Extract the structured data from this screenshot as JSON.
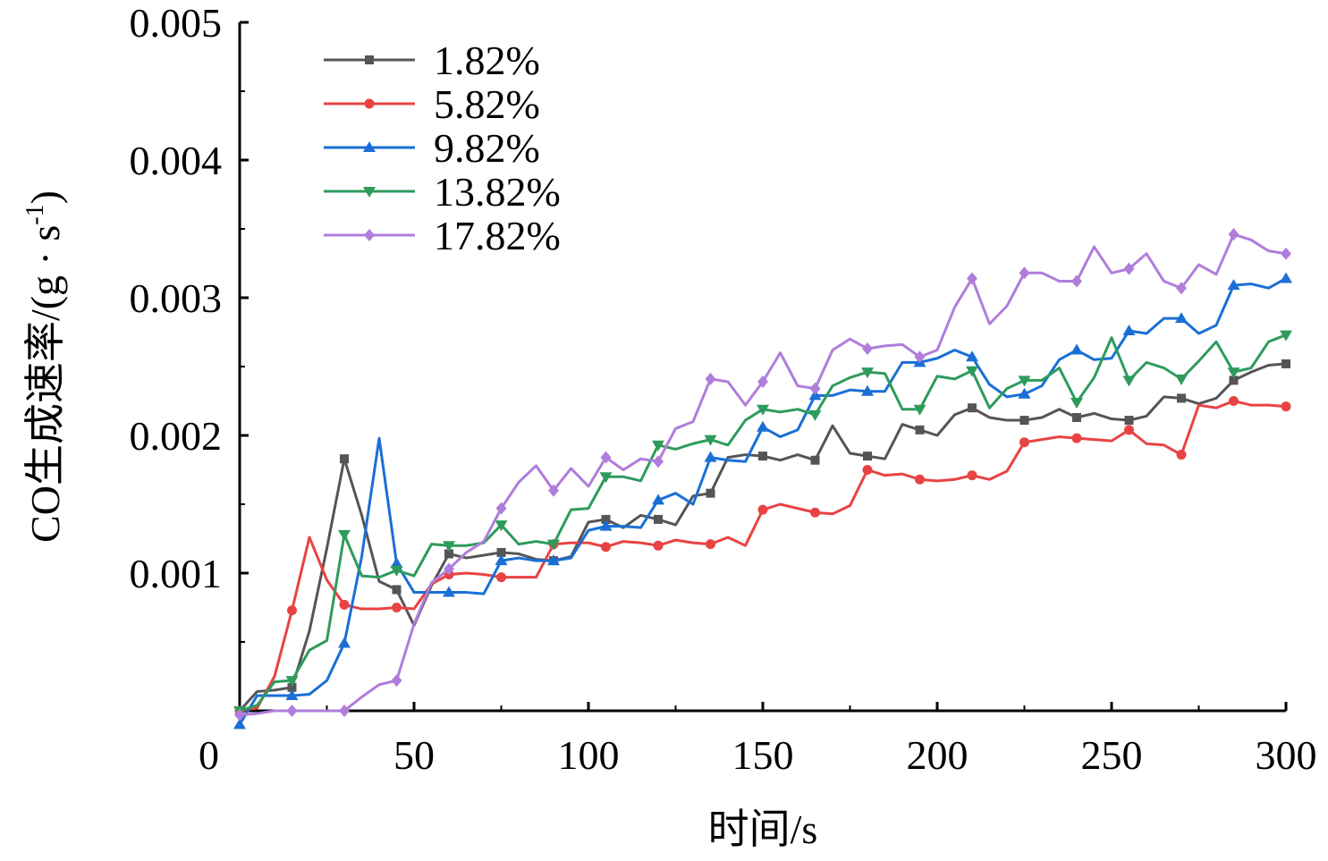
{
  "chart_data": {
    "type": "line",
    "xlabel": "时间/s",
    "ylabel": "CO生成速率/(g · s",
    "ylabel_superscript": "-1",
    "ylabel_close": ")",
    "xlim": [
      0,
      300
    ],
    "ylim": [
      0,
      0.005
    ],
    "x_ticks": [
      0,
      50,
      100,
      150,
      200,
      250,
      300
    ],
    "x_tick_labels": [
      "0",
      "50",
      "100",
      "150",
      "200",
      "250",
      "300"
    ],
    "y_ticks": [
      0.001,
      0.002,
      0.003,
      0.004,
      0.005
    ],
    "y_tick_labels": [
      "0.001",
      "0.002",
      "0.003",
      "0.004",
      "0.005"
    ],
    "grid": false,
    "legend_position": "top-left",
    "series": [
      {
        "name": "1.82%",
        "color": "#555555",
        "marker": "square",
        "x": [
          0,
          5,
          10,
          15,
          20,
          25,
          30,
          35,
          40,
          45,
          50,
          55,
          60,
          65,
          70,
          75,
          80,
          85,
          90,
          95,
          100,
          105,
          110,
          115,
          120,
          125,
          130,
          135,
          140,
          145,
          150,
          155,
          160,
          165,
          170,
          175,
          180,
          185,
          190,
          195,
          200,
          205,
          210,
          215,
          220,
          225,
          230,
          235,
          240,
          245,
          250,
          255,
          260,
          265,
          270,
          275,
          280,
          285,
          290,
          295,
          300
        ],
        "y": [
          0,
          0.00014,
          0.00015,
          0.00017,
          0.00058,
          0.00118,
          0.00183,
          0.00142,
          0.00094,
          0.00088,
          0.00062,
          0.00091,
          0.00114,
          0.00111,
          0.00113,
          0.00115,
          0.00114,
          0.0011,
          0.00109,
          0.00112,
          0.00137,
          0.00139,
          0.00133,
          0.00142,
          0.00139,
          0.00135,
          0.00156,
          0.00158,
          0.00184,
          0.00186,
          0.00185,
          0.00182,
          0.00186,
          0.00182,
          0.00207,
          0.00187,
          0.00185,
          0.00183,
          0.00208,
          0.00204,
          0.002,
          0.00215,
          0.0022,
          0.00213,
          0.00211,
          0.00211,
          0.00213,
          0.00219,
          0.00213,
          0.00216,
          0.00212,
          0.00211,
          0.00214,
          0.00228,
          0.00227,
          0.00223,
          0.00227,
          0.0024,
          0.00246,
          0.00251,
          0.00252
        ]
      },
      {
        "name": "5.82%",
        "color": "#e84343",
        "marker": "circle",
        "x": [
          0,
          5,
          10,
          15,
          20,
          25,
          30,
          35,
          40,
          45,
          50,
          55,
          60,
          65,
          70,
          75,
          80,
          85,
          90,
          95,
          100,
          105,
          110,
          115,
          120,
          125,
          130,
          135,
          140,
          145,
          150,
          155,
          160,
          165,
          170,
          175,
          180,
          185,
          190,
          195,
          200,
          205,
          210,
          215,
          220,
          225,
          230,
          235,
          240,
          245,
          250,
          255,
          260,
          265,
          270,
          275,
          280,
          285,
          290,
          295,
          300
        ],
        "y": [
          0,
          2e-05,
          0.00025,
          0.00073,
          0.00126,
          0.00095,
          0.00077,
          0.00074,
          0.00074,
          0.00075,
          0.00074,
          0.00092,
          0.00099,
          0.001,
          0.00099,
          0.00097,
          0.00097,
          0.00097,
          0.00121,
          0.00122,
          0.00122,
          0.00119,
          0.00123,
          0.00122,
          0.0012,
          0.00124,
          0.00122,
          0.00121,
          0.00126,
          0.0012,
          0.00146,
          0.0015,
          0.00147,
          0.00144,
          0.00143,
          0.00149,
          0.00175,
          0.00171,
          0.00172,
          0.00168,
          0.00167,
          0.00168,
          0.00171,
          0.00168,
          0.00174,
          0.00195,
          0.00197,
          0.00199,
          0.00198,
          0.00197,
          0.00196,
          0.00204,
          0.00194,
          0.00193,
          0.00186,
          0.00222,
          0.0022,
          0.00225,
          0.00222,
          0.00222,
          0.00221
        ]
      },
      {
        "name": "9.82%",
        "color": "#1a6fd6",
        "marker": "triangle-up",
        "x": [
          0,
          5,
          10,
          15,
          20,
          25,
          30,
          35,
          40,
          45,
          50,
          55,
          60,
          65,
          70,
          75,
          80,
          85,
          90,
          95,
          100,
          105,
          110,
          115,
          120,
          125,
          130,
          135,
          140,
          145,
          150,
          155,
          160,
          165,
          170,
          175,
          180,
          185,
          190,
          195,
          200,
          205,
          210,
          215,
          220,
          225,
          230,
          235,
          240,
          245,
          250,
          255,
          260,
          265,
          270,
          275,
          280,
          285,
          290,
          295,
          300
        ],
        "y": [
          -0.0001,
          0.00011,
          0.00011,
          0.00011,
          0.00012,
          0.00022,
          0.00049,
          0.00112,
          0.00198,
          0.00107,
          0.00086,
          0.00086,
          0.00086,
          0.00086,
          0.00085,
          0.00109,
          0.00111,
          0.00109,
          0.00109,
          0.00111,
          0.00131,
          0.00134,
          0.00134,
          0.00133,
          0.00153,
          0.00158,
          0.0015,
          0.00184,
          0.00182,
          0.00181,
          0.00206,
          0.00199,
          0.00204,
          0.00229,
          0.00229,
          0.00233,
          0.00232,
          0.00232,
          0.00253,
          0.00253,
          0.00256,
          0.00262,
          0.00257,
          0.00237,
          0.00228,
          0.0023,
          0.00236,
          0.00255,
          0.00262,
          0.00255,
          0.00256,
          0.00276,
          0.00274,
          0.00285,
          0.00285,
          0.00274,
          0.0028,
          0.00309,
          0.0031,
          0.00307,
          0.00314
        ]
      },
      {
        "name": "13.82%",
        "color": "#2e9b5c",
        "marker": "triangle-down",
        "x": [
          0,
          5,
          10,
          15,
          20,
          25,
          30,
          35,
          40,
          45,
          50,
          55,
          60,
          65,
          70,
          75,
          80,
          85,
          90,
          95,
          100,
          105,
          110,
          115,
          120,
          125,
          130,
          135,
          140,
          145,
          150,
          155,
          160,
          165,
          170,
          175,
          180,
          185,
          190,
          195,
          200,
          205,
          210,
          215,
          220,
          225,
          230,
          235,
          240,
          245,
          250,
          255,
          260,
          265,
          270,
          275,
          280,
          285,
          290,
          295,
          300
        ],
        "y": [
          0,
          4e-05,
          0.00021,
          0.00022,
          0.00044,
          0.00051,
          0.00128,
          0.00098,
          0.00097,
          0.00102,
          0.00098,
          0.00121,
          0.0012,
          0.0012,
          0.00122,
          0.00135,
          0.00121,
          0.00123,
          0.00121,
          0.00146,
          0.00147,
          0.0017,
          0.0017,
          0.00167,
          0.00193,
          0.0019,
          0.00194,
          0.00197,
          0.00193,
          0.00211,
          0.00219,
          0.00217,
          0.00219,
          0.00215,
          0.00236,
          0.00242,
          0.00246,
          0.00245,
          0.00219,
          0.00219,
          0.00243,
          0.00241,
          0.00247,
          0.0022,
          0.00234,
          0.0024,
          0.0024,
          0.00249,
          0.00224,
          0.00242,
          0.00271,
          0.0024,
          0.00253,
          0.00249,
          0.00241,
          0.00254,
          0.00268,
          0.00246,
          0.00249,
          0.00268,
          0.00273
        ]
      },
      {
        "name": "17.82%",
        "color": "#b07ddb",
        "marker": "diamond",
        "x": [
          0,
          5,
          10,
          15,
          20,
          25,
          30,
          35,
          40,
          45,
          50,
          55,
          60,
          65,
          70,
          75,
          80,
          85,
          90,
          95,
          100,
          105,
          110,
          115,
          120,
          125,
          130,
          135,
          140,
          145,
          150,
          155,
          160,
          165,
          170,
          175,
          180,
          185,
          190,
          195,
          200,
          205,
          210,
          215,
          220,
          225,
          230,
          235,
          240,
          245,
          250,
          255,
          260,
          265,
          270,
          275,
          280,
          285,
          290,
          295,
          300
        ],
        "y": [
          -3e-05,
          -2e-05,
          0,
          0,
          0,
          0,
          0,
          0.0001,
          0.00019,
          0.00022,
          0.00063,
          0.00093,
          0.00103,
          0.00115,
          0.00123,
          0.00147,
          0.00166,
          0.00178,
          0.0016,
          0.00176,
          0.00163,
          0.00184,
          0.00175,
          0.00183,
          0.00181,
          0.00205,
          0.0021,
          0.00241,
          0.00239,
          0.00222,
          0.00239,
          0.0026,
          0.00236,
          0.00234,
          0.00262,
          0.0027,
          0.00263,
          0.00265,
          0.00266,
          0.00257,
          0.00262,
          0.00293,
          0.00314,
          0.00281,
          0.00294,
          0.00318,
          0.00318,
          0.00312,
          0.00312,
          0.00337,
          0.00318,
          0.00321,
          0.00332,
          0.00312,
          0.00307,
          0.00324,
          0.00317,
          0.00346,
          0.00342,
          0.00334,
          0.00332
        ]
      }
    ]
  }
}
